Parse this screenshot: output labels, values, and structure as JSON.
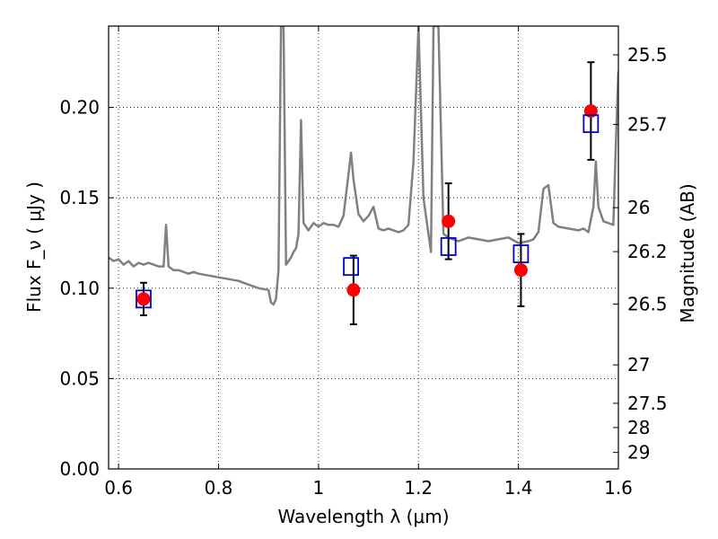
{
  "chart_data": {
    "type": "scatter",
    "xlabel": "Wavelength  λ (μm)",
    "ylabel": "Flux  F_ν  ( μJy )",
    "y2label": "Magnitude (AB)",
    "xlim": [
      0.58,
      1.6
    ],
    "ylim": [
      0.0,
      0.245
    ],
    "x_ticks": [
      {
        "value": 0.6,
        "label": "0.6"
      },
      {
        "value": 0.8,
        "label": "0.8"
      },
      {
        "value": 1.0,
        "label": "1"
      },
      {
        "value": 1.2,
        "label": "1.2"
      },
      {
        "value": 1.4,
        "label": "1.4"
      },
      {
        "value": 1.6,
        "label": "1.6"
      }
    ],
    "y_ticks": [
      {
        "value": 0.0,
        "label": "0.00"
      },
      {
        "value": 0.05,
        "label": "0.05"
      },
      {
        "value": 0.1,
        "label": "0.10"
      },
      {
        "value": 0.15,
        "label": "0.15"
      },
      {
        "value": 0.2,
        "label": "0.20"
      }
    ],
    "y2_ticks": [
      {
        "mag": 25.5,
        "label": "25.5"
      },
      {
        "mag": 25.7,
        "label": "25.7"
      },
      {
        "mag": 26,
        "label": "26"
      },
      {
        "mag": 26.2,
        "label": "26.2"
      },
      {
        "mag": 26.5,
        "label": "26.5"
      },
      {
        "mag": 27,
        "label": "27"
      },
      {
        "mag": 27.5,
        "label": "27.5"
      },
      {
        "mag": 28,
        "label": "28"
      },
      {
        "mag": 29,
        "label": "29"
      }
    ],
    "grid": true,
    "series": [
      {
        "kind": "line",
        "color": "#808080",
        "points": [
          [
            0.58,
            0.117
          ],
          [
            0.59,
            0.115
          ],
          [
            0.6,
            0.116
          ],
          [
            0.61,
            0.113
          ],
          [
            0.62,
            0.115
          ],
          [
            0.63,
            0.112
          ],
          [
            0.64,
            0.114
          ],
          [
            0.65,
            0.113
          ],
          [
            0.66,
            0.114
          ],
          [
            0.67,
            0.113
          ],
          [
            0.68,
            0.112
          ],
          [
            0.69,
            0.112
          ],
          [
            0.695,
            0.135
          ],
          [
            0.7,
            0.112
          ],
          [
            0.71,
            0.11
          ],
          [
            0.72,
            0.11
          ],
          [
            0.73,
            0.109
          ],
          [
            0.74,
            0.108
          ],
          [
            0.75,
            0.109
          ],
          [
            0.76,
            0.108
          ],
          [
            0.78,
            0.107
          ],
          [
            0.8,
            0.106
          ],
          [
            0.82,
            0.105
          ],
          [
            0.84,
            0.104
          ],
          [
            0.86,
            0.102
          ],
          [
            0.88,
            0.1
          ],
          [
            0.9,
            0.099
          ],
          [
            0.905,
            0.092
          ],
          [
            0.91,
            0.091
          ],
          [
            0.915,
            0.094
          ],
          [
            0.92,
            0.11
          ],
          [
            0.925,
            0.245
          ],
          [
            0.93,
            0.245
          ],
          [
            0.935,
            0.113
          ],
          [
            0.94,
            0.115
          ],
          [
            0.945,
            0.117
          ],
          [
            0.95,
            0.12
          ],
          [
            0.955,
            0.122
          ],
          [
            0.96,
            0.13
          ],
          [
            0.965,
            0.193
          ],
          [
            0.97,
            0.136
          ],
          [
            0.98,
            0.132
          ],
          [
            0.99,
            0.136
          ],
          [
            1.0,
            0.134
          ],
          [
            1.01,
            0.136
          ],
          [
            1.02,
            0.135
          ],
          [
            1.03,
            0.135
          ],
          [
            1.04,
            0.134
          ],
          [
            1.05,
            0.14
          ],
          [
            1.06,
            0.163
          ],
          [
            1.065,
            0.175
          ],
          [
            1.07,
            0.16
          ],
          [
            1.08,
            0.141
          ],
          [
            1.09,
            0.137
          ],
          [
            1.1,
            0.14
          ],
          [
            1.11,
            0.145
          ],
          [
            1.12,
            0.133
          ],
          [
            1.13,
            0.132
          ],
          [
            1.14,
            0.133
          ],
          [
            1.15,
            0.132
          ],
          [
            1.16,
            0.131
          ],
          [
            1.17,
            0.132
          ],
          [
            1.18,
            0.135
          ],
          [
            1.19,
            0.17
          ],
          [
            1.2,
            0.245
          ],
          [
            1.21,
            0.15
          ],
          [
            1.22,
            0.13
          ],
          [
            1.225,
            0.12
          ],
          [
            1.23,
            0.245
          ],
          [
            1.24,
            0.245
          ],
          [
            1.25,
            0.13
          ],
          [
            1.26,
            0.128
          ],
          [
            1.27,
            0.127
          ],
          [
            1.28,
            0.126
          ],
          [
            1.3,
            0.128
          ],
          [
            1.32,
            0.127
          ],
          [
            1.34,
            0.126
          ],
          [
            1.36,
            0.127
          ],
          [
            1.38,
            0.128
          ],
          [
            1.4,
            0.125
          ],
          [
            1.42,
            0.126
          ],
          [
            1.43,
            0.127
          ],
          [
            1.44,
            0.131
          ],
          [
            1.45,
            0.155
          ],
          [
            1.46,
            0.157
          ],
          [
            1.47,
            0.136
          ],
          [
            1.48,
            0.134
          ],
          [
            1.5,
            0.133
          ],
          [
            1.52,
            0.132
          ],
          [
            1.53,
            0.133
          ],
          [
            1.54,
            0.131
          ],
          [
            1.55,
            0.145
          ],
          [
            1.555,
            0.17
          ],
          [
            1.56,
            0.145
          ],
          [
            1.57,
            0.137
          ],
          [
            1.58,
            0.136
          ],
          [
            1.59,
            0.135
          ],
          [
            1.595,
            0.18
          ],
          [
            1.6,
            0.22
          ]
        ]
      },
      {
        "kind": "points",
        "marker": "circle",
        "color": "#ff0000",
        "points": [
          {
            "x": 0.65,
            "y": 0.094,
            "err": 0.009
          },
          {
            "x": 1.07,
            "y": 0.099,
            "err": 0.019
          },
          {
            "x": 1.26,
            "y": 0.137,
            "err": 0.021
          },
          {
            "x": 1.405,
            "y": 0.11,
            "err": 0.02
          },
          {
            "x": 1.545,
            "y": 0.198,
            "err": 0.027
          }
        ]
      },
      {
        "kind": "points",
        "marker": "square-open",
        "color": "#0000cc",
        "points": [
          {
            "x": 0.65,
            "y": 0.094
          },
          {
            "x": 1.065,
            "y": 0.112
          },
          {
            "x": 1.26,
            "y": 0.123
          },
          {
            "x": 1.405,
            "y": 0.119
          },
          {
            "x": 1.545,
            "y": 0.191
          }
        ]
      }
    ]
  }
}
